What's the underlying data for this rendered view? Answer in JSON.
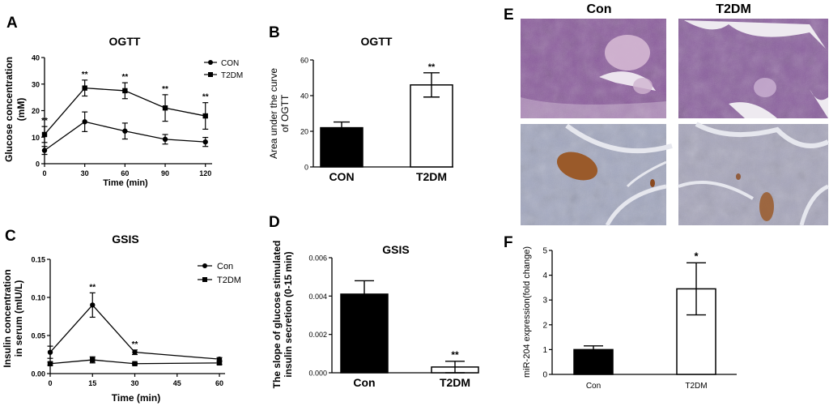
{
  "figure": {
    "panel_letters": [
      "A",
      "B",
      "C",
      "D",
      "E",
      "F"
    ]
  },
  "chart_data": [
    {
      "panel": "A",
      "type": "line",
      "title": "OGTT",
      "xlabel": "Time (min)",
      "ylabel": "Glucose concentration (mM)",
      "ylabel_lines": [
        "Glucose concentration",
        "(mM)"
      ],
      "x": [
        0,
        30,
        60,
        90,
        120
      ],
      "xticks": [
        0,
        30,
        60,
        90,
        120
      ],
      "yticks": [
        0,
        10,
        20,
        30,
        40
      ],
      "xlim": [
        0,
        125
      ],
      "ylim": [
        0,
        40
      ],
      "series": [
        {
          "name": "CON",
          "marker": "circle",
          "values": [
            5,
            15.8,
            12.3,
            9.2,
            8.2
          ],
          "errors": [
            1.5,
            3.7,
            3.0,
            1.8,
            1.7
          ]
        },
        {
          "name": "T2DM",
          "marker": "square",
          "values": [
            11,
            28.5,
            27.5,
            21,
            18
          ],
          "errors": [
            3.0,
            3.0,
            3.0,
            5.0,
            5.0
          ]
        }
      ],
      "annotations": [
        "**",
        "**",
        "**",
        "**",
        "**"
      ],
      "legend_position": "top-right"
    },
    {
      "panel": "B",
      "type": "bar",
      "title": "OGTT",
      "ylabel": "Area under the curve of OGTT",
      "ylabel_lines": [
        "Area under the curve",
        "of OGTT"
      ],
      "categories": [
        "CON",
        "T2DM"
      ],
      "values": [
        22,
        46
      ],
      "errors": [
        3.2,
        6.8
      ],
      "fills": [
        "#000000",
        "#ffffff"
      ],
      "yticks": [
        0,
        20,
        40,
        60
      ],
      "ylim": [
        0,
        60
      ],
      "annotations": [
        "",
        "**"
      ]
    },
    {
      "panel": "C",
      "type": "line",
      "title": "GSIS",
      "xlabel": "Time (min)",
      "ylabel": "Insulin concentration in serum (mIU/L)",
      "ylabel_lines": [
        "Insulin concentration",
        "in serum (mIU/L)"
      ],
      "x": [
        0,
        15,
        30,
        60
      ],
      "xticks": [
        0,
        15,
        30,
        45,
        60
      ],
      "yticks": [
        "0.00",
        "0.05",
        "0.10",
        "0.15"
      ],
      "yvals": [
        0,
        0.05,
        0.1,
        0.15
      ],
      "xlim": [
        0,
        62
      ],
      "ylim": [
        0,
        0.15
      ],
      "series": [
        {
          "name": "Con",
          "marker": "circle",
          "values": [
            0.028,
            0.09,
            0.028,
            0.019
          ],
          "errors": [
            0.008,
            0.016,
            0.003,
            0.002
          ]
        },
        {
          "name": "T2DM",
          "marker": "square",
          "values": [
            0.013,
            0.018,
            0.013,
            0.014
          ],
          "errors": [
            0.002,
            0.004,
            0.001,
            0.002
          ]
        }
      ],
      "annotations": [
        "**",
        "**"
      ],
      "legend_position": "top-right"
    },
    {
      "panel": "D",
      "type": "bar",
      "title": "GSIS",
      "ylabel": "The slope of glucose stimulated insulin secretion (0-15 min)",
      "ylabel_lines": [
        "The slope of glucose stimulated",
        "insulin secretion (0-15 min)"
      ],
      "categories": [
        "Con",
        "T2DM"
      ],
      "values": [
        0.0041,
        0.0003
      ],
      "errors": [
        0.0007,
        0.0003
      ],
      "fills": [
        "#000000",
        "#ffffff"
      ],
      "yticks": [
        "0.000",
        "0.002",
        "0.004",
        "0.006"
      ],
      "yvals": [
        0,
        0.002,
        0.004,
        0.006
      ],
      "ylim": [
        0,
        0.006
      ],
      "annotations": [
        "",
        "**"
      ]
    },
    {
      "panel": "F",
      "type": "bar",
      "ylabel": "miR-204 expression(fold change)",
      "categories": [
        "Con",
        "T2DM"
      ],
      "values": [
        1.0,
        3.45
      ],
      "errors": [
        0.15,
        1.05
      ],
      "fills": [
        "#000000",
        "#ffffff"
      ],
      "yticks": [
        0,
        1,
        2,
        3,
        4,
        5
      ],
      "ylim": [
        0,
        5
      ],
      "annotations": [
        "",
        "*"
      ]
    }
  ],
  "histology": {
    "panel": "E",
    "columns": [
      "Con",
      "T2DM"
    ],
    "colors": {
      "he_stain": "#8a5a9c",
      "ihc_background": "#a3a8c0",
      "ihc_positive": "#9a5a2a"
    }
  }
}
